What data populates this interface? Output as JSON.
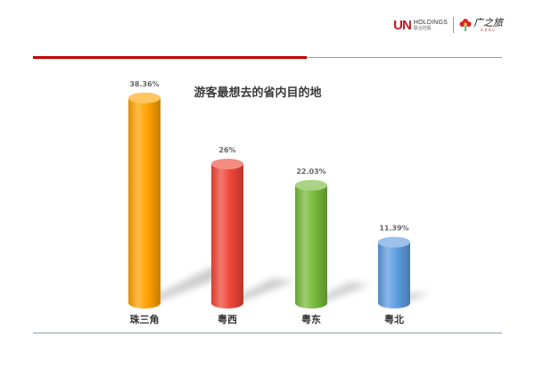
{
  "header": {
    "un_mark": "UN",
    "un_holdings": "HOLDINGS",
    "un_sub": "联合控股",
    "cts_cn": "广之旅",
    "cts_en": "CZSL"
  },
  "chart_data": {
    "type": "bar",
    "title": "游客最想去的省内目的地",
    "categories": [
      "珠三角",
      "粤西",
      "粤东",
      "粤北"
    ],
    "values": [
      38.36,
      26,
      22.03,
      11.39
    ],
    "value_labels": [
      "38.36%",
      "26%",
      "22.03%",
      "11.39%"
    ],
    "ylim": [
      0,
      40
    ],
    "grid": false,
    "legend": "none",
    "colors": [
      "#ffa100",
      "#ef4535",
      "#75ba38",
      "#5d9be0"
    ]
  }
}
